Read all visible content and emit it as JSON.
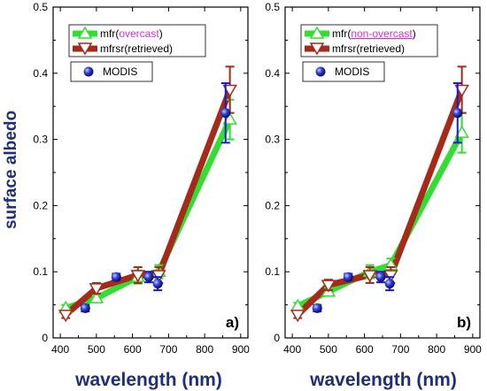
{
  "figure": {
    "ylabel": "surface albedo",
    "xlabel": "wavelength (nm)"
  },
  "chart_data": [
    {
      "type": "line",
      "panel_label": "a)",
      "xlabel": "wavelength (nm)",
      "ylabel": "surface albedo",
      "xlim": [
        380,
        920
      ],
      "ylim": [
        0,
        0.5
      ],
      "xticks": [
        400,
        500,
        600,
        700,
        800,
        900
      ],
      "yticks": [
        0,
        0.1,
        0.2,
        0.3,
        0.4,
        0.5
      ],
      "grid": false,
      "legend_position": "top-left",
      "legend": [
        {
          "series": "mfr",
          "prefix": "mfr(",
          "highlight": "overcast",
          "suffix": ")",
          "underline": false
        },
        {
          "series": "mfrsr",
          "label": "mfrsr(retrieved)"
        },
        {
          "series": "modis",
          "label": "MODIS"
        }
      ],
      "series": [
        {
          "name": "mfr(overcast)",
          "marker": "triangle-up",
          "color": "#33dd33",
          "x": [
            415,
            500,
            615,
            673,
            870
          ],
          "y": [
            0.045,
            0.06,
            0.092,
            0.1,
            0.33
          ],
          "err": [
            0.005,
            0.005,
            0.01,
            0.01,
            0.03
          ]
        },
        {
          "name": "mfrsr(retrieved)",
          "marker": "triangle-down",
          "color": "#a52a1a",
          "x": [
            415,
            500,
            615,
            673,
            870
          ],
          "y": [
            0.035,
            0.075,
            0.095,
            0.095,
            0.375
          ],
          "err": [
            0.005,
            0.008,
            0.012,
            0.012,
            0.035
          ]
        },
        {
          "name": "MODIS",
          "marker": "sphere",
          "color": "#1a1acc",
          "x": [
            469,
            555,
            645,
            670,
            858
          ],
          "y": [
            0.045,
            0.092,
            0.092,
            0.082,
            0.34
          ],
          "err": [
            0.005,
            0.005,
            0.008,
            0.01,
            0.045
          ]
        }
      ]
    },
    {
      "type": "line",
      "panel_label": "b)",
      "xlabel": "wavelength (nm)",
      "ylabel": "",
      "xlim": [
        380,
        920
      ],
      "ylim": [
        0,
        0.5
      ],
      "xticks": [
        400,
        500,
        600,
        700,
        800,
        900
      ],
      "yticks": [
        0,
        0.1,
        0.2,
        0.3,
        0.4,
        0.5
      ],
      "grid": false,
      "legend_position": "top-left",
      "legend": [
        {
          "series": "mfr",
          "prefix": "mfr(",
          "highlight": "non-overcast",
          "suffix": ")",
          "underline": true
        },
        {
          "series": "mfrsr",
          "label": "mfrsr(retrieved)"
        },
        {
          "series": "modis",
          "label": "MODIS"
        }
      ],
      "series": [
        {
          "name": "mfr(non-overcast)",
          "marker": "triangle-up",
          "color": "#33dd33",
          "x": [
            415,
            500,
            615,
            673,
            870
          ],
          "y": [
            0.048,
            0.07,
            0.1,
            0.11,
            0.31
          ],
          "err": [
            0.005,
            0.006,
            0.01,
            0.01,
            0.03
          ]
        },
        {
          "name": "mfrsr(retrieved)",
          "marker": "triangle-down",
          "color": "#a52a1a",
          "x": [
            415,
            500,
            615,
            673,
            870
          ],
          "y": [
            0.035,
            0.08,
            0.095,
            0.095,
            0.375
          ],
          "err": [
            0.005,
            0.008,
            0.012,
            0.012,
            0.035
          ]
        },
        {
          "name": "MODIS",
          "marker": "sphere",
          "color": "#1a1acc",
          "x": [
            469,
            555,
            645,
            670,
            858
          ],
          "y": [
            0.045,
            0.092,
            0.092,
            0.082,
            0.34
          ],
          "err": [
            0.005,
            0.005,
            0.008,
            0.01,
            0.045
          ]
        }
      ]
    }
  ]
}
